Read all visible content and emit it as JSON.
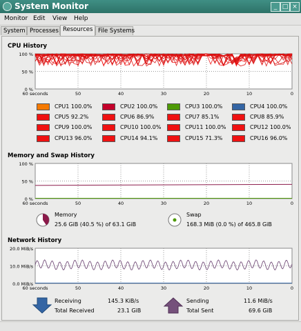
{
  "window": {
    "title": "System Monitor"
  },
  "menu": [
    "Monitor",
    "Edit",
    "View",
    "Help"
  ],
  "tabs": [
    "System",
    "Processes",
    "Resources",
    "File Systems"
  ],
  "active_tab": "Resources",
  "sections": {
    "cpu": "CPU History",
    "memory": "Memory and Swap History",
    "network": "Network History"
  },
  "cpu_axis": {
    "y_ticks": [
      "100 %",
      "50 %",
      "0 %"
    ],
    "x_ticks": [
      "60 seconds",
      "50",
      "40",
      "30",
      "20",
      "10",
      "0"
    ]
  },
  "mem_axis": {
    "y_ticks": [
      "100 %",
      "50 %",
      "0 %"
    ],
    "x_ticks": [
      "60 seconds",
      "50",
      "40",
      "30",
      "20",
      "10",
      "0"
    ]
  },
  "net_axis": {
    "y_ticks": [
      "20.0 MiB/s",
      "10.0 MiB/s",
      "0.0 MiB/s"
    ],
    "x_ticks": [
      "60 seconds",
      "50",
      "40",
      "30",
      "20",
      "10",
      "0"
    ]
  },
  "cpus": [
    {
      "label": "CPU1",
      "value": "100.0%",
      "color": "#f57900"
    },
    {
      "label": "CPU2",
      "value": "100.0%",
      "color": "#c4002a"
    },
    {
      "label": "CPU3",
      "value": "100.0%",
      "color": "#4e9a06"
    },
    {
      "label": "CPU4",
      "value": "100.0%",
      "color": "#3465a4"
    },
    {
      "label": "CPU5",
      "value": "92.2%",
      "color": "#ef1111"
    },
    {
      "label": "CPU6",
      "value": "86.9%",
      "color": "#ef1111"
    },
    {
      "label": "CPU7",
      "value": "85.1%",
      "color": "#ef1111"
    },
    {
      "label": "CPU8",
      "value": "85.9%",
      "color": "#ef1111"
    },
    {
      "label": "CPU9",
      "value": "100.0%",
      "color": "#ef1111"
    },
    {
      "label": "CPU10",
      "value": "100.0%",
      "color": "#ef1111"
    },
    {
      "label": "CPU11",
      "value": "100.0%",
      "color": "#ef1111"
    },
    {
      "label": "CPU12",
      "value": "100.0%",
      "color": "#ef1111"
    },
    {
      "label": "CPU13",
      "value": "96.0%",
      "color": "#ef1111"
    },
    {
      "label": "CPU14",
      "value": "94.1%",
      "color": "#ef1111"
    },
    {
      "label": "CPU15",
      "value": "71.3%",
      "color": "#ef1111"
    },
    {
      "label": "CPU16",
      "value": "96.0%",
      "color": "#ef1111"
    }
  ],
  "memory": {
    "label": "Memory",
    "detail": "25.6 GiB (40.5 %) of 63.1 GiB",
    "percent": 40.5,
    "color": "#8b1a4a"
  },
  "swap": {
    "label": "Swap",
    "detail": "168.3 MiB (0.0 %) of 465.8 GiB",
    "percent": 0.0,
    "color": "#4e9a06"
  },
  "network": {
    "receiving_label": "Receiving",
    "receiving_value": "145.3 KiB/s",
    "total_received_label": "Total Received",
    "total_received_value": "23.1 GiB",
    "sending_label": "Sending",
    "sending_value": "11.6 MiB/s",
    "total_sent_label": "Total Sent",
    "total_sent_value": "69.6 GiB",
    "receive_color": "#3465a4",
    "send_color": "#75507b"
  }
}
